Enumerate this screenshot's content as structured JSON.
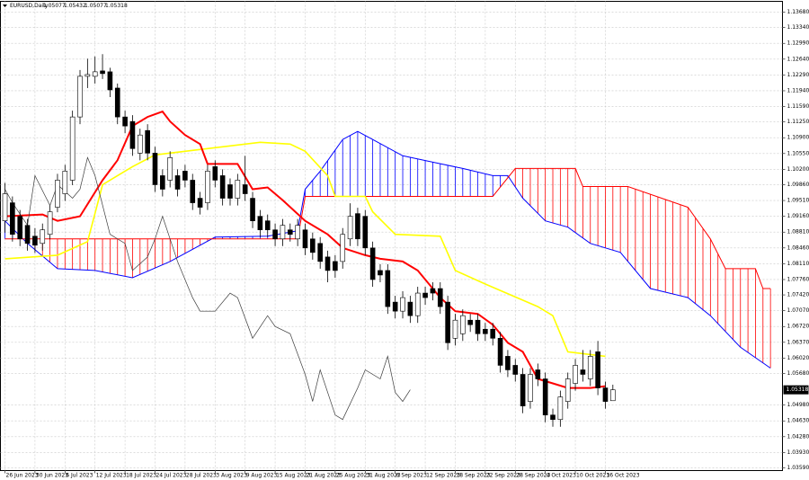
{
  "chart_data": {
    "type": "candlestick",
    "symbol": "EURUSD,Daily",
    "up_color": "#ffffff",
    "down_color": "#000000",
    "grid": true,
    "xlim": [
      -0.6,
      103.6
    ],
    "ylim": [
      1.0353,
      1.1392
    ],
    "yticks": [
      {
        "value": 1.1368,
        "label": "1.13680"
      },
      {
        "value": 1.1334,
        "label": "1.13340"
      },
      {
        "value": 1.1299,
        "label": "1.12990"
      },
      {
        "value": 1.1264,
        "label": "1.12640"
      },
      {
        "value": 1.1229,
        "label": "1.12290"
      },
      {
        "value": 1.1194,
        "label": "1.11940"
      },
      {
        "value": 1.1159,
        "label": "1.11590"
      },
      {
        "value": 1.1125,
        "label": "1.11250"
      },
      {
        "value": 1.109,
        "label": "1.10900"
      },
      {
        "value": 1.1055,
        "label": "1.10550"
      },
      {
        "value": 1.102,
        "label": "1.10200"
      },
      {
        "value": 1.0986,
        "label": "1.09860"
      },
      {
        "value": 1.0951,
        "label": "1.09510"
      },
      {
        "value": 1.0916,
        "label": "1.09160"
      },
      {
        "value": 1.0881,
        "label": "1.08810"
      },
      {
        "value": 1.0846,
        "label": "1.08460"
      },
      {
        "value": 1.0811,
        "label": "1.08110"
      },
      {
        "value": 1.0776,
        "label": "1.07760"
      },
      {
        "value": 1.0742,
        "label": "1.07420"
      },
      {
        "value": 1.0707,
        "label": "1.07070"
      },
      {
        "value": 1.0672,
        "label": "1.06720"
      },
      {
        "value": 1.0637,
        "label": "1.06370"
      },
      {
        "value": 1.0602,
        "label": "1.06020"
      },
      {
        "value": 1.0568,
        "label": "1.05680"
      },
      {
        "value": 1.0498,
        "label": "1.04980"
      },
      {
        "value": 1.0463,
        "label": "1.04630"
      },
      {
        "value": 1.0428,
        "label": "1.04280"
      },
      {
        "value": 1.0393,
        "label": "1.03930"
      },
      {
        "value": 1.0359,
        "label": "1.03590"
      }
    ],
    "xticks": [
      {
        "value": 0,
        "label": "26 Jun 2023"
      },
      {
        "value": 4,
        "label": "30 Jun 2023"
      },
      {
        "value": 8,
        "label": "6 Jul 2023"
      },
      {
        "value": 12,
        "label": "12 Jul 2023"
      },
      {
        "value": 16,
        "label": "18 Jul 2023"
      },
      {
        "value": 20,
        "label": "24 Jul 2023"
      },
      {
        "value": 24,
        "label": "28 Jul 2023"
      },
      {
        "value": 28,
        "label": "3 Aug 2023"
      },
      {
        "value": 32,
        "label": "9 Aug 2023"
      },
      {
        "value": 36,
        "label": "15 Aug 2023"
      },
      {
        "value": 40,
        "label": "21 Aug 2023"
      },
      {
        "value": 44,
        "label": "25 Aug 2023"
      },
      {
        "value": 48,
        "label": "31 Aug 2023"
      },
      {
        "value": 52,
        "label": "6 Sep 2023"
      },
      {
        "value": 56,
        "label": "12 Sep 2023"
      },
      {
        "value": 60,
        "label": "18 Sep 2023"
      },
      {
        "value": 64,
        "label": "22 Sep 2023"
      },
      {
        "value": 68,
        "label": "28 Sep 2023"
      },
      {
        "value": 72,
        "label": "4 Oct 2023"
      },
      {
        "value": 76,
        "label": "10 Oct 2023"
      },
      {
        "value": 80,
        "label": "16 Oct 2023"
      }
    ],
    "candles": {
      "open": [
        1.0906,
        1.0946,
        1.0916,
        1.0896,
        1.0872,
        1.0856,
        1.0876,
        1.0936,
        1.0966,
        1.0996,
        1.1136,
        1.1226,
        1.1226,
        1.1238,
        1.1236,
        1.12,
        1.1136,
        1.1126,
        1.1056,
        1.1106,
        1.1056,
        1.1006,
        1.0996,
        1.1006,
        1.1016,
        1.0996,
        1.0956,
        1.0946,
        1.1026,
        1.1006,
        1.0986,
        1.0956,
        1.0986,
        1.0956,
        1.0916,
        1.0906,
        1.0886,
        1.0866,
        1.0886,
        1.0866,
        1.0886,
        1.0866,
        1.0856,
        1.0826,
        1.0816,
        1.0816,
        1.0866,
        1.0922,
        1.0916,
        1.0846,
        1.0796,
        1.0796,
        1.0726,
        1.0706,
        1.0726,
        1.0696,
        1.0746,
        1.0756,
        1.0756,
        1.0726,
        1.0646,
        1.0656,
        1.0686,
        1.0686,
        1.0666,
        1.0666,
        1.0646,
        1.0606,
        1.0586,
        1.0566,
        1.0506,
        1.0576,
        1.0556,
        1.0476,
        1.0466,
        1.0506,
        1.0546,
        1.0576,
        1.0556,
        1.0616,
        1.0536,
        1.05077
      ],
      "high": [
        1.099,
        1.096,
        1.093,
        1.091,
        1.089,
        1.09,
        1.094,
        1.101,
        1.103,
        1.115,
        1.124,
        1.1265,
        1.127,
        1.1275,
        1.1245,
        1.121,
        1.115,
        1.114,
        1.111,
        1.112,
        1.107,
        1.102,
        1.106,
        1.102,
        1.103,
        1.101,
        1.097,
        1.103,
        1.104,
        1.102,
        1.1,
        1.101,
        1.105,
        1.097,
        1.093,
        1.092,
        1.09,
        1.091,
        1.09,
        1.091,
        1.09,
        1.088,
        1.087,
        1.084,
        1.083,
        1.089,
        1.0945,
        1.0935,
        1.093,
        1.086,
        1.081,
        1.081,
        1.074,
        1.075,
        1.074,
        1.076,
        1.076,
        1.077,
        1.077,
        1.074,
        1.07,
        1.071,
        1.07,
        1.07,
        1.068,
        1.068,
        1.066,
        1.062,
        1.06,
        1.058,
        1.058,
        1.059,
        1.057,
        1.049,
        1.053,
        1.057,
        1.06,
        1.062,
        1.062,
        1.064,
        1.055,
        1.05432
      ],
      "low": [
        1.088,
        1.086,
        1.085,
        1.084,
        1.0835,
        1.084,
        1.0865,
        1.0925,
        1.095,
        1.0985,
        1.112,
        1.12,
        1.121,
        1.122,
        1.118,
        1.112,
        1.11,
        1.105,
        1.104,
        1.104,
        1.097,
        1.096,
        1.098,
        1.096,
        1.098,
        1.093,
        1.092,
        1.093,
        1.098,
        1.094,
        1.094,
        1.094,
        1.095,
        1.089,
        1.087,
        1.087,
        1.085,
        1.085,
        1.086,
        1.085,
        1.083,
        1.082,
        1.08,
        1.077,
        1.078,
        1.08,
        1.085,
        1.085,
        1.083,
        1.076,
        1.077,
        1.07,
        1.069,
        1.069,
        1.068,
        1.068,
        1.072,
        1.073,
        1.07,
        1.062,
        1.063,
        1.064,
        1.066,
        1.064,
        1.064,
        1.063,
        1.057,
        1.056,
        1.055,
        1.048,
        1.049,
        1.054,
        1.046,
        1.045,
        1.045,
        1.049,
        1.053,
        1.055,
        1.054,
        1.052,
        1.049,
        1.05077
      ],
      "close": [
        1.0966,
        1.0876,
        1.0866,
        1.0856,
        1.0852,
        1.0886,
        1.0926,
        1.0996,
        1.1016,
        1.1136,
        1.1226,
        1.123,
        1.1236,
        1.1232,
        1.1196,
        1.1136,
        1.1116,
        1.1066,
        1.1096,
        1.1056,
        1.0986,
        1.0976,
        1.1046,
        1.0976,
        1.0996,
        1.0946,
        1.0936,
        1.1016,
        1.0996,
        1.0956,
        1.0956,
        1.0996,
        1.0966,
        1.0906,
        1.0886,
        1.0886,
        1.0866,
        1.0896,
        1.0876,
        1.0896,
        1.0846,
        1.0836,
        1.0816,
        1.0796,
        1.0796,
        1.0876,
        1.0916,
        1.0866,
        1.0846,
        1.0776,
        1.0786,
        1.0716,
        1.0706,
        1.0736,
        1.0696,
        1.0746,
        1.0736,
        1.0746,
        1.0716,
        1.0636,
        1.0686,
        1.0696,
        1.0676,
        1.0656,
        1.0656,
        1.0646,
        1.0586,
        1.0576,
        1.0566,
        1.0496,
        1.0566,
        1.0556,
        1.0476,
        1.0466,
        1.0516,
        1.0556,
        1.0586,
        1.0566,
        1.0606,
        1.0536,
        1.0506,
        1.05318
      ]
    },
    "lines": [
      {
        "color": "#0000ff",
        "width": 1,
        "x": [
          0,
          3,
          7,
          12,
          17,
          22,
          28,
          35,
          39,
          40,
          42,
          45,
          47,
          49,
          53,
          57,
          61,
          65,
          67,
          69,
          72,
          75,
          78,
          82,
          86,
          91,
          94,
          98,
          102
        ],
        "values": [
          1.0906,
          1.0856,
          1.08,
          1.0796,
          1.078,
          1.0816,
          1.087,
          1.0872,
          1.0884,
          1.0976,
          1.1016,
          1.1086,
          1.1104,
          1.1086,
          1.105,
          1.1036,
          1.1022,
          1.1006,
          1.1006,
          1.0956,
          1.0906,
          1.0892,
          1.0856,
          1.0836,
          1.0756,
          1.0736,
          1.0696,
          1.0626,
          1.058
        ]
      },
      {
        "color": "#ff0000",
        "width": 1,
        "x": [
          0,
          39,
          40,
          65,
          68,
          76,
          77,
          83,
          91,
          94,
          96,
          100,
          101,
          102
        ],
        "values": [
          1.0866,
          1.0866,
          1.096,
          1.096,
          1.1022,
          1.1022,
          1.0982,
          1.0982,
          1.0936,
          1.0866,
          1.08,
          1.08,
          1.0756,
          1.0756
        ]
      },
      {
        "color": "#ffff00",
        "width": 1.6,
        "x": [
          0,
          7,
          11,
          13,
          15,
          17,
          20,
          34,
          38,
          40,
          43,
          44,
          48,
          49,
          52,
          58,
          60,
          64,
          71,
          73,
          75,
          78,
          80
        ],
        "values": [
          1.0822,
          1.083,
          1.086,
          1.0986,
          1.1006,
          1.1026,
          1.1052,
          1.108,
          1.1076,
          1.106,
          1.1006,
          1.096,
          1.096,
          1.0926,
          1.0876,
          1.0872,
          1.0796,
          1.0766,
          1.0716,
          1.0696,
          1.0616,
          1.061,
          1.0606
        ]
      },
      {
        "color": "#ff0000",
        "width": 2,
        "x": [
          0,
          5,
          7,
          10,
          13,
          15,
          17,
          19,
          21,
          22,
          24,
          26,
          27,
          31,
          33,
          35,
          37,
          40,
          43,
          45,
          48,
          50,
          53,
          55,
          58,
          60,
          63,
          65,
          67,
          69,
          71,
          73,
          75,
          78,
          80
        ],
        "values": [
          1.0916,
          1.092,
          1.0906,
          1.0916,
          1.0996,
          1.104,
          1.1116,
          1.1136,
          1.1148,
          1.1126,
          1.1096,
          1.1076,
          1.1032,
          1.1032,
          1.0976,
          1.098,
          1.0952,
          1.0906,
          1.0876,
          1.0846,
          1.083,
          1.0822,
          1.0816,
          1.0796,
          1.0736,
          1.0706,
          1.07,
          1.0676,
          1.0636,
          1.0616,
          1.0556,
          1.0546,
          1.0536,
          1.0536,
          1.054
        ]
      },
      {
        "color": "#3c3c3c",
        "width": 0.7,
        "x": [
          0,
          1,
          3,
          4,
          6,
          7,
          9,
          10,
          11,
          12,
          14,
          16,
          17,
          19,
          20,
          21,
          22,
          23,
          25,
          26,
          28,
          30,
          31,
          33,
          35,
          36,
          38,
          40,
          41,
          42,
          44,
          45,
          47,
          48,
          50,
          51,
          52,
          53,
          54
        ],
        "values": [
          1.0976,
          1.0946,
          1.0896,
          1.1006,
          1.094,
          1.0986,
          1.0956,
          1.0976,
          1.1046,
          1.1006,
          1.0876,
          1.0856,
          1.0796,
          1.0826,
          1.0866,
          1.0916,
          1.0866,
          1.0816,
          1.0736,
          1.0706,
          1.0706,
          1.0746,
          1.0736,
          1.0646,
          1.0696,
          1.0672,
          1.0656,
          1.0566,
          1.0506,
          1.0576,
          1.0476,
          1.0466,
          1.0536,
          1.0576,
          1.0556,
          1.0606,
          1.0526,
          1.0506,
          1.0532
        ]
      }
    ]
  }
}
